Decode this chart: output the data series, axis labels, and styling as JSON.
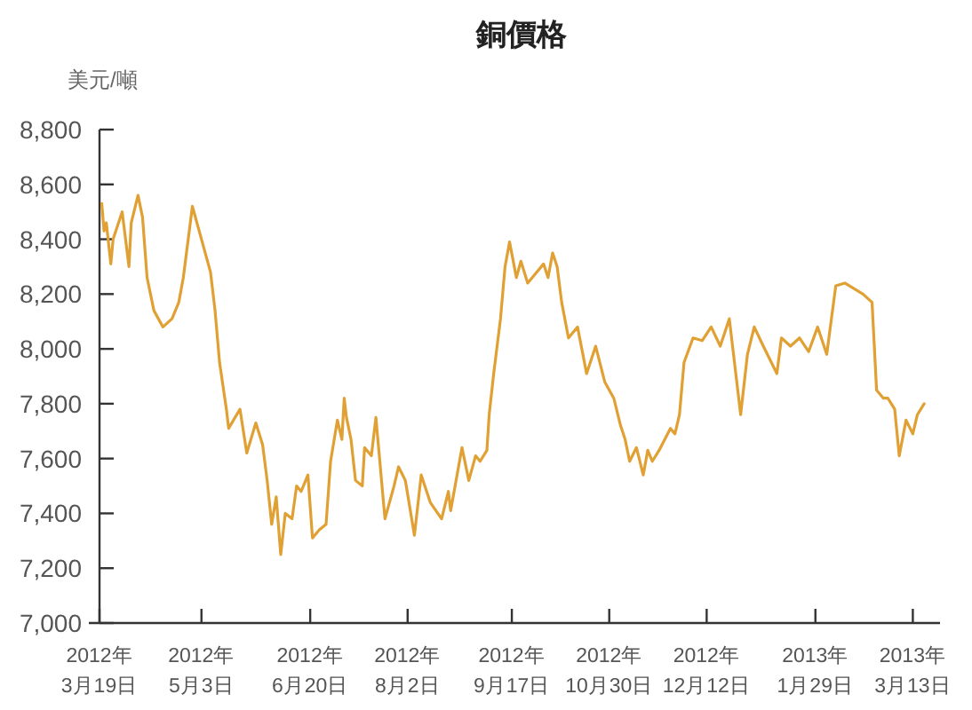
{
  "chart_data": {
    "type": "line",
    "title": "銅價格",
    "ylabel": "美元/噸",
    "xlim": [
      "2012-03-19",
      "2013-03-25"
    ],
    "xticks": [
      {
        "value": "2012-03-19",
        "label": "2012年\n3月19日"
      },
      {
        "value": "2012-05-03",
        "label": "2012年\n5月3日"
      },
      {
        "value": "2012-06-20",
        "label": "2012年\n6月20日"
      },
      {
        "value": "2012-08-02",
        "label": "2012年\n8月2日"
      },
      {
        "value": "2012-09-17",
        "label": "2012年\n9月17日"
      },
      {
        "value": "2012-10-30",
        "label": "2012年\n10月30日"
      },
      {
        "value": "2012-12-12",
        "label": "2012年\n12月12日"
      },
      {
        "value": "2013-01-29",
        "label": "2013年\n1月29日"
      },
      {
        "value": "2013-03-13",
        "label": "2013年\n3月13日"
      }
    ],
    "ylim": [
      7000,
      8800
    ],
    "yticks": [
      {
        "value": 7000,
        "label": "7,000"
      },
      {
        "value": 7200,
        "label": "7,200"
      },
      {
        "value": 7400,
        "label": "7,400"
      },
      {
        "value": 7600,
        "label": "7,600"
      },
      {
        "value": 7800,
        "label": "7,800"
      },
      {
        "value": 8000,
        "label": "8,000"
      },
      {
        "value": 8200,
        "label": "8,200"
      },
      {
        "value": 8400,
        "label": "8,400"
      },
      {
        "value": 8600,
        "label": "8,600"
      },
      {
        "value": 8800,
        "label": "8,800"
      }
    ],
    "grid": false,
    "marker": "none",
    "line_style": "solid",
    "series": [
      {
        "color": "#e0a033",
        "x": [
          "2012-03-20",
          "2012-03-21",
          "2012-03-22",
          "2012-03-24",
          "2012-03-25",
          "2012-03-29",
          "2012-04-01",
          "2012-04-02",
          "2012-04-05",
          "2012-04-07",
          "2012-04-09",
          "2012-04-12",
          "2012-04-16",
          "2012-04-20",
          "2012-04-23",
          "2012-04-25",
          "2012-04-29",
          "2012-05-07",
          "2012-05-09",
          "2012-05-11",
          "2012-05-14",
          "2012-05-15",
          "2012-05-20",
          "2012-05-23",
          "2012-05-27",
          "2012-05-30",
          "2012-06-01",
          "2012-06-03",
          "2012-06-05",
          "2012-06-07",
          "2012-06-09",
          "2012-06-12",
          "2012-06-14",
          "2012-06-16",
          "2012-06-19",
          "2012-06-21",
          "2012-06-24",
          "2012-06-27",
          "2012-06-29",
          "2012-07-02",
          "2012-07-04",
          "2012-07-05",
          "2012-07-06",
          "2012-07-08",
          "2012-07-10",
          "2012-07-13",
          "2012-07-14",
          "2012-07-17",
          "2012-07-19",
          "2012-07-23",
          "2012-07-27",
          "2012-07-29",
          "2012-08-01",
          "2012-08-05",
          "2012-08-08",
          "2012-08-12",
          "2012-08-17",
          "2012-08-20",
          "2012-08-21",
          "2012-08-26",
          "2012-08-29",
          "2012-09-01",
          "2012-09-03",
          "2012-09-06",
          "2012-09-07",
          "2012-09-09",
          "2012-09-12",
          "2012-09-14",
          "2012-09-16",
          "2012-09-19",
          "2012-09-21",
          "2012-09-24",
          "2012-09-27",
          "2012-10-01",
          "2012-10-03",
          "2012-10-05",
          "2012-10-07",
          "2012-10-09",
          "2012-10-12",
          "2012-10-16",
          "2012-10-20",
          "2012-10-24",
          "2012-10-28",
          "2012-11-01",
          "2012-11-04",
          "2012-11-06",
          "2012-11-08",
          "2012-11-11",
          "2012-11-14",
          "2012-11-16",
          "2012-11-18",
          "2012-11-21",
          "2012-11-26",
          "2012-11-28",
          "2012-11-30",
          "2012-12-02",
          "2012-12-06",
          "2012-12-10",
          "2012-12-14",
          "2012-12-18",
          "2012-12-22",
          "2012-12-27",
          "2012-12-30",
          "2013-01-02",
          "2013-01-06",
          "2013-01-12",
          "2013-01-14",
          "2013-01-18",
          "2013-01-22",
          "2013-01-26",
          "2013-01-30",
          "2013-02-03",
          "2013-02-07",
          "2013-02-11",
          "2013-02-15",
          "2013-02-19",
          "2013-02-23",
          "2013-02-25",
          "2013-02-28",
          "2013-03-02",
          "2013-03-05",
          "2013-03-07",
          "2013-03-10",
          "2013-03-13",
          "2013-03-15",
          "2013-03-18"
        ],
        "values": [
          8530,
          8430,
          8460,
          8310,
          8400,
          8500,
          8300,
          8460,
          8560,
          8480,
          8260,
          8140,
          8080,
          8110,
          8170,
          8260,
          8520,
          8280,
          8140,
          7950,
          7780,
          7710,
          7780,
          7620,
          7730,
          7650,
          7520,
          7360,
          7460,
          7250,
          7400,
          7380,
          7500,
          7480,
          7540,
          7310,
          7340,
          7360,
          7590,
          7740,
          7670,
          7820,
          7750,
          7670,
          7520,
          7500,
          7640,
          7610,
          7750,
          7380,
          7500,
          7570,
          7520,
          7320,
          7540,
          7440,
          7380,
          7480,
          7410,
          7640,
          7520,
          7610,
          7590,
          7630,
          7760,
          7910,
          8110,
          8300,
          8390,
          8260,
          8320,
          8240,
          8270,
          8310,
          8260,
          8350,
          8300,
          8170,
          8040,
          8080,
          7910,
          8010,
          7880,
          7820,
          7720,
          7670,
          7590,
          7640,
          7540,
          7630,
          7590,
          7630,
          7710,
          7690,
          7760,
          7950,
          8040,
          8030,
          8080,
          8010,
          8110,
          7760,
          7980,
          8080,
          8010,
          7910,
          8040,
          8010,
          8040,
          7990,
          8080,
          7980,
          8230,
          8240,
          8220,
          8200,
          8170,
          7850,
          7820,
          7820,
          7780,
          7610,
          7740,
          7690,
          7760,
          7800
        ]
      }
    ]
  }
}
